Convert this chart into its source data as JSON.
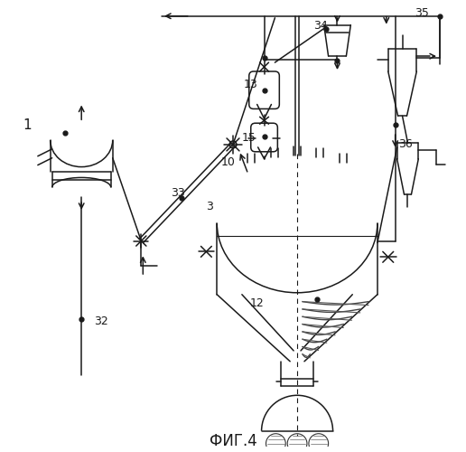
{
  "title": "ФИГ.4",
  "bg": "#ffffff",
  "lc": "#1a1a1a",
  "lw": 1.1
}
